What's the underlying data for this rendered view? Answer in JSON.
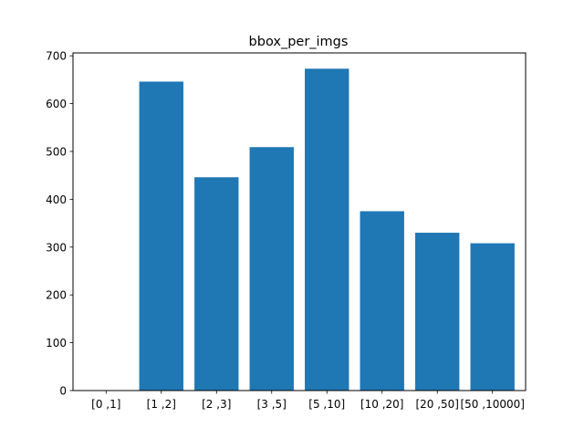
{
  "chart_data": {
    "type": "bar",
    "title": "bbox_per_imgs",
    "xlabel": "",
    "ylabel": "",
    "categories": [
      "[0 ,1]",
      "[1 ,2]",
      "[2 ,3]",
      "[3 ,5]",
      "[5 ,10]",
      "[10 ,20]",
      "[20 ,50]",
      "[50 ,10000]"
    ],
    "values": [
      0,
      646,
      446,
      509,
      673,
      375,
      330,
      308
    ],
    "ylim": [
      0,
      706
    ],
    "yticks": [
      0,
      100,
      200,
      300,
      400,
      500,
      600,
      700
    ],
    "grid": false,
    "legend": false,
    "bar_color": "#1f77b4"
  }
}
